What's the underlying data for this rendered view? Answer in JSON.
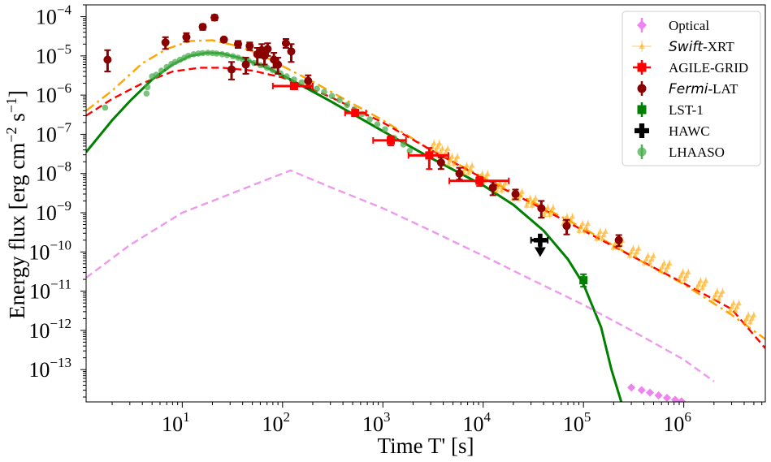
{
  "chart_data": {
    "type": "scatter",
    "title": "",
    "xlabel": "Time T' [s]",
    "ylabel": "Energy flux [erg cm$^{-2}$ s$^{-1}$]",
    "xscale": "log",
    "yscale": "log",
    "xlim": [
      1.1,
      6500000
    ],
    "ylim": [
      1.5e-14,
      0.0002
    ],
    "x_ticks": [
      {
        "value": 10,
        "base": "10",
        "exp": "1"
      },
      {
        "value": 100,
        "base": "10",
        "exp": "2"
      },
      {
        "value": 1000,
        "base": "10",
        "exp": "3"
      },
      {
        "value": 10000,
        "base": "10",
        "exp": "4"
      },
      {
        "value": 100000,
        "base": "10",
        "exp": "5"
      },
      {
        "value": 1000000,
        "base": "10",
        "exp": "6"
      }
    ],
    "y_ticks": [
      {
        "value": 1e-13,
        "base": "10",
        "exp": "−13"
      },
      {
        "value": 1e-12,
        "base": "10",
        "exp": "−12"
      },
      {
        "value": 1e-11,
        "base": "10",
        "exp": "−11"
      },
      {
        "value": 1e-10,
        "base": "10",
        "exp": "−10"
      },
      {
        "value": 1e-09,
        "base": "10",
        "exp": "−9"
      },
      {
        "value": 1e-08,
        "base": "10",
        "exp": "−8"
      },
      {
        "value": 1e-07,
        "base": "10",
        "exp": "−7"
      },
      {
        "value": 1e-06,
        "base": "10",
        "exp": "−6"
      },
      {
        "value": 1e-05,
        "base": "10",
        "exp": "−5"
      },
      {
        "value": 0.0001,
        "base": "10",
        "exp": "−4"
      }
    ],
    "legend": {
      "position": "top-right",
      "entries": [
        {
          "label": "Optical",
          "color": "#ee82ee",
          "marker": "diamond"
        },
        {
          "label": "Swift-XRT",
          "prefix": "Swift",
          "suffix": "-XRT",
          "color": "#ffa500",
          "marker": "triangle"
        },
        {
          "label": "AGILE-GRID",
          "color": "#ff0000",
          "marker": "square"
        },
        {
          "label": "Fermi-LAT",
          "prefix": "Fermi",
          "suffix": "-LAT",
          "color": "#8b0000",
          "marker": "circle"
        },
        {
          "label": "LST-1",
          "color": "#008000",
          "marker": "square"
        },
        {
          "label": "HAWC",
          "color": "#000000",
          "marker": "plus"
        },
        {
          "label": "LHAASO",
          "color": "#4caf50",
          "marker": "circle"
        }
      ]
    },
    "series": [
      {
        "name": "Fermi-LAT",
        "kind": "errorbar",
        "color": "#8b0000",
        "marker": "circle",
        "points": [
          {
            "x": 1.8,
            "y": 8e-06,
            "ylo": 4e-06,
            "yhi": 1.4e-05
          },
          {
            "x": 6.8,
            "y": 2.2e-05,
            "ylo": 1.5e-05,
            "yhi": 3e-05
          },
          {
            "x": 11,
            "y": 3e-05,
            "ylo": 2.3e-05,
            "yhi": 3.8e-05
          },
          {
            "x": 16,
            "y": 5.5e-05,
            "ylo": 4.6e-05,
            "yhi": 6.4e-05
          },
          {
            "x": 21,
            "y": 9.5e-05,
            "ylo": 8e-05,
            "yhi": 0.00011
          },
          {
            "x": 26,
            "y": 2.6e-05,
            "ylo": 2.3e-05,
            "yhi": 2.9e-05
          },
          {
            "x": 31,
            "y": 4.5e-06,
            "ylo": 2.5e-06,
            "yhi": 7e-06
          },
          {
            "x": 36,
            "y": 2e-05,
            "ylo": 1.6e-05,
            "yhi": 2.4e-05
          },
          {
            "x": 43,
            "y": 6e-06,
            "ylo": 3.5e-06,
            "yhi": 9e-06
          },
          {
            "x": 47,
            "y": 1.8e-05,
            "ylo": 1.4e-05,
            "yhi": 2.2e-05
          },
          {
            "x": 56,
            "y": 1.1e-05,
            "ylo": 6e-06,
            "yhi": 1.6e-05
          },
          {
            "x": 62,
            "y": 1.4e-05,
            "ylo": 9e-06,
            "yhi": 2e-05
          },
          {
            "x": 66,
            "y": 1e-05,
            "ylo": 6e-06,
            "yhi": 1.5e-05
          },
          {
            "x": 71,
            "y": 1.5e-05,
            "ylo": 1e-05,
            "yhi": 2.1e-05
          },
          {
            "x": 82,
            "y": 8e-06,
            "ylo": 5e-06,
            "yhi": 1.2e-05
          },
          {
            "x": 90,
            "y": 6e-06,
            "ylo": 3.5e-06,
            "yhi": 9e-06
          },
          {
            "x": 108,
            "y": 2.1e-05,
            "ylo": 1.6e-05,
            "yhi": 2.7e-05
          },
          {
            "x": 122,
            "y": 1.3e-05,
            "ylo": 7e-06,
            "yhi": 2e-05
          },
          {
            "x": 180,
            "y": 2.3e-06,
            "ylo": 1.5e-06,
            "yhi": 3.2e-06
          },
          {
            "x": 3800,
            "y": 1.9e-08,
            "ylo": 1.3e-08,
            "yhi": 2.6e-08
          },
          {
            "x": 5800,
            "y": 1e-08,
            "ylo": 7e-09,
            "yhi": 1.4e-08
          },
          {
            "x": 12500,
            "y": 4.4e-09,
            "ylo": 2.8e-09,
            "yhi": 6.2e-09
          },
          {
            "x": 21000,
            "y": 3e-09,
            "ylo": 2.2e-09,
            "yhi": 3.9e-09
          },
          {
            "x": 38000,
            "y": 1.3e-09,
            "ylo": 7.5e-10,
            "yhi": 2e-09
          },
          {
            "x": 68000,
            "y": 4.6e-10,
            "ylo": 2.8e-10,
            "yhi": 6.6e-10
          },
          {
            "x": 225000,
            "y": 2e-10,
            "ylo": 1.4e-10,
            "yhi": 2.7e-10
          }
        ]
      },
      {
        "name": "AGILE-GRID",
        "kind": "errorbar",
        "color": "#ff0000",
        "marker": "square",
        "points": [
          {
            "x": 130,
            "y": 1.7e-06,
            "xlo": 80,
            "xhi": 200
          },
          {
            "x": 530,
            "y": 3.5e-07,
            "xlo": 420,
            "xhi": 680
          },
          {
            "x": 1200,
            "y": 7e-08,
            "xlo": 800,
            "xhi": 1700,
            "ylo": 5.2e-08,
            "yhi": 9e-08
          },
          {
            "x": 2900,
            "y": 2.9e-08,
            "xlo": 1800,
            "xhi": 4500,
            "ylo": 1.3e-08,
            "yhi": 4.5e-08
          },
          {
            "x": 9200,
            "y": 6.5e-09,
            "xlo": 4600,
            "xhi": 18000,
            "ylo": 4.8e-09,
            "yhi": 8.2e-09
          }
        ]
      },
      {
        "name": "LST-1",
        "kind": "errorbar",
        "color": "#008000",
        "marker": "square",
        "points": [
          {
            "x": 100000,
            "y": 1.9e-11,
            "ylo": 1.3e-11,
            "yhi": 2.7e-11
          }
        ]
      },
      {
        "name": "HAWC",
        "kind": "upper_limit",
        "color": "#000000",
        "marker": "plus",
        "points": [
          {
            "x": 37000,
            "y": 2e-10,
            "xlo": 30000,
            "xhi": 44000,
            "ymin": 9e-11
          }
        ]
      },
      {
        "name": "LHAASO",
        "kind": "scatter",
        "color": "#4caf50",
        "marker": "circle",
        "points": [
          {
            "x": 1.7,
            "y": 4.8e-07
          },
          {
            "x": 4.4,
            "y": 1.1e-06
          },
          {
            "x": 4.5,
            "y": 1.6e-06
          },
          {
            "x": 5,
            "y": 3e-06
          },
          {
            "x": 5.5,
            "y": 3.3e-06
          },
          {
            "x": 6.2,
            "y": 4.2e-06
          },
          {
            "x": 7,
            "y": 5.2e-06
          },
          {
            "x": 7.8,
            "y": 6.2e-06
          },
          {
            "x": 8.5,
            "y": 7e-06
          },
          {
            "x": 9.5,
            "y": 8e-06
          },
          {
            "x": 10.5,
            "y": 9e-06
          },
          {
            "x": 11.5,
            "y": 1e-05
          },
          {
            "x": 13,
            "y": 1.1e-05
          },
          {
            "x": 14.5,
            "y": 1.15e-05
          },
          {
            "x": 16,
            "y": 1.18e-05
          },
          {
            "x": 18,
            "y": 1.2e-05
          },
          {
            "x": 20,
            "y": 1.18e-05
          },
          {
            "x": 22,
            "y": 1.15e-05
          },
          {
            "x": 25,
            "y": 1.1e-05
          },
          {
            "x": 28,
            "y": 1.05e-05
          },
          {
            "x": 32,
            "y": 9.8e-06
          },
          {
            "x": 36,
            "y": 9e-06
          },
          {
            "x": 40,
            "y": 8.2e-06
          },
          {
            "x": 46,
            "y": 7.4e-06
          },
          {
            "x": 52,
            "y": 6.6e-06
          },
          {
            "x": 60,
            "y": 5.8e-06
          },
          {
            "x": 70,
            "y": 5e-06
          },
          {
            "x": 80,
            "y": 4.3e-06
          },
          {
            "x": 95,
            "y": 3.6e-06
          },
          {
            "x": 110,
            "y": 3e-06
          },
          {
            "x": 130,
            "y": 2.5e-06
          },
          {
            "x": 155,
            "y": 2.1e-06
          },
          {
            "x": 185,
            "y": 1.75e-06
          },
          {
            "x": 220,
            "y": 1.45e-06
          },
          {
            "x": 260,
            "y": 1.2e-06
          },
          {
            "x": 310,
            "y": 9.5e-07
          },
          {
            "x": 370,
            "y": 7.5e-07
          },
          {
            "x": 440,
            "y": 5.6e-07
          },
          {
            "x": 520,
            "y": 4.3e-07
          },
          {
            "x": 620,
            "y": 3.3e-07
          },
          {
            "x": 740,
            "y": 2.4e-07
          },
          {
            "x": 880,
            "y": 1.8e-07
          },
          {
            "x": 1050,
            "y": 1.35e-07
          },
          {
            "x": 1300,
            "y": 8e-08
          },
          {
            "x": 1600,
            "y": 5.5e-08
          },
          {
            "x": 1850,
            "y": 3.8e-08
          }
        ]
      },
      {
        "name": "Swift-XRT",
        "kind": "band",
        "color": "#ffa500",
        "marker": "triangle",
        "points": [
          {
            "x": 3300,
            "y": 4.8e-08
          },
          {
            "x": 4000,
            "y": 3.5e-08
          },
          {
            "x": 5000,
            "y": 2.2e-08
          },
          {
            "x": 7000,
            "y": 1.3e-08
          },
          {
            "x": 10000,
            "y": 8e-09
          },
          {
            "x": 15000,
            "y": 4.6e-09
          },
          {
            "x": 22000,
            "y": 2.8e-09
          },
          {
            "x": 30000,
            "y": 1.9e-09
          },
          {
            "x": 45000,
            "y": 1.1e-09
          },
          {
            "x": 70000,
            "y": 6.5e-10
          },
          {
            "x": 100000,
            "y": 4.3e-10
          },
          {
            "x": 150000,
            "y": 2.7e-10
          },
          {
            "x": 220000,
            "y": 1.6e-10
          },
          {
            "x": 320000,
            "y": 1e-10
          },
          {
            "x": 450000,
            "y": 6.5e-11
          },
          {
            "x": 650000,
            "y": 4.2e-11
          },
          {
            "x": 1000000,
            "y": 2.5e-11
          },
          {
            "x": 1500000,
            "y": 1.5e-11
          },
          {
            "x": 2200000,
            "y": 8e-12
          },
          {
            "x": 3200000,
            "y": 4e-12
          },
          {
            "x": 4500000,
            "y": 2e-12
          }
        ]
      },
      {
        "name": "Optical",
        "kind": "scatter",
        "color": "#ee82ee",
        "marker": "diamond",
        "points": [
          {
            "x": 300000,
            "y": 3.5e-14
          },
          {
            "x": 380000,
            "y": 3e-14
          },
          {
            "x": 460000,
            "y": 2.6e-14
          },
          {
            "x": 560000,
            "y": 2.2e-14
          },
          {
            "x": 680000,
            "y": 1.9e-14
          },
          {
            "x": 820000,
            "y": 1.7e-14
          },
          {
            "x": 950000,
            "y": 1.55e-14
          }
        ]
      }
    ],
    "model_curves": [
      {
        "name": "orange dash-dot model",
        "color": "#ffa500",
        "style": "dashdot",
        "points": [
          [
            1.1,
            4e-07
          ],
          [
            2,
            1.3e-06
          ],
          [
            4,
            6.5e-06
          ],
          [
            7,
            1.5e-05
          ],
          [
            12,
            2.4e-05
          ],
          [
            20,
            2.5e-05
          ],
          [
            35,
            1.8e-05
          ],
          [
            60,
            1.1e-05
          ],
          [
            100,
            5.5e-06
          ],
          [
            200,
            2.2e-06
          ],
          [
            500,
            6e-07
          ],
          [
            1000,
            2.3e-07
          ],
          [
            3000,
            4e-08
          ],
          [
            10000,
            8e-09
          ],
          [
            30000,
            2e-09
          ],
          [
            100000,
            4e-10
          ],
          [
            300000,
            8e-11
          ],
          [
            1000000,
            1.5e-11
          ],
          [
            3000000,
            2.5e-12
          ],
          [
            6500000,
            6e-13
          ]
        ]
      },
      {
        "name": "red dashed model",
        "color": "#ff0000",
        "style": "dashed",
        "points": [
          [
            1.1,
            3e-07
          ],
          [
            2,
            8e-07
          ],
          [
            4,
            2e-06
          ],
          [
            8,
            4e-06
          ],
          [
            15,
            5e-06
          ],
          [
            25,
            5e-06
          ],
          [
            50,
            4.2e-06
          ],
          [
            100,
            2.8e-06
          ],
          [
            300,
            9e-07
          ],
          [
            1000,
            2e-07
          ],
          [
            3000,
            4e-08
          ],
          [
            10000,
            7.5e-09
          ],
          [
            30000,
            1.8e-09
          ],
          [
            100000,
            3.5e-10
          ],
          [
            300000,
            8e-11
          ],
          [
            1000000,
            1.6e-11
          ],
          [
            3000000,
            3.5e-12
          ],
          [
            6500000,
            3.5e-13
          ]
        ]
      },
      {
        "name": "green solid model",
        "color": "#008000",
        "style": "solid",
        "points": [
          [
            1.1,
            3.5e-08
          ],
          [
            2,
            2.3e-07
          ],
          [
            3,
            7e-07
          ],
          [
            5,
            2.5e-06
          ],
          [
            8,
            6e-06
          ],
          [
            12,
            1e-05
          ],
          [
            18,
            1.2e-05
          ],
          [
            25,
            1.15e-05
          ],
          [
            40,
            8.5e-06
          ],
          [
            70,
            5e-06
          ],
          [
            120,
            2.5e-06
          ],
          [
            300,
            7e-07
          ],
          [
            1000,
            1.2e-07
          ],
          [
            3000,
            2.5e-08
          ],
          [
            10000,
            5e-09
          ],
          [
            20000,
            1.6e-09
          ],
          [
            40000,
            3.5e-10
          ],
          [
            70000,
            6.5e-11
          ],
          [
            100000,
            1.5e-11
          ],
          [
            150000,
            1.2e-12
          ],
          [
            190000,
            1e-13
          ],
          [
            250000,
            1e-14
          ]
        ]
      },
      {
        "name": "violet dashed model",
        "color": "#ee99ee",
        "style": "dashed",
        "points": [
          [
            1.1,
            2.2e-11
          ],
          [
            3,
            1.5e-10
          ],
          [
            10,
            1e-09
          ],
          [
            30,
            3e-09
          ],
          [
            60,
            6e-09
          ],
          [
            120,
            1.2e-08
          ],
          [
            300,
            4.5e-09
          ],
          [
            1000,
            1.3e-09
          ],
          [
            3000,
            3.5e-10
          ],
          [
            10000,
            8e-11
          ],
          [
            30000,
            2e-11
          ],
          [
            100000,
            4.5e-12
          ],
          [
            300000,
            1e-12
          ],
          [
            1000000,
            1.8e-13
          ],
          [
            2000000,
            5e-14
          ]
        ]
      }
    ]
  }
}
